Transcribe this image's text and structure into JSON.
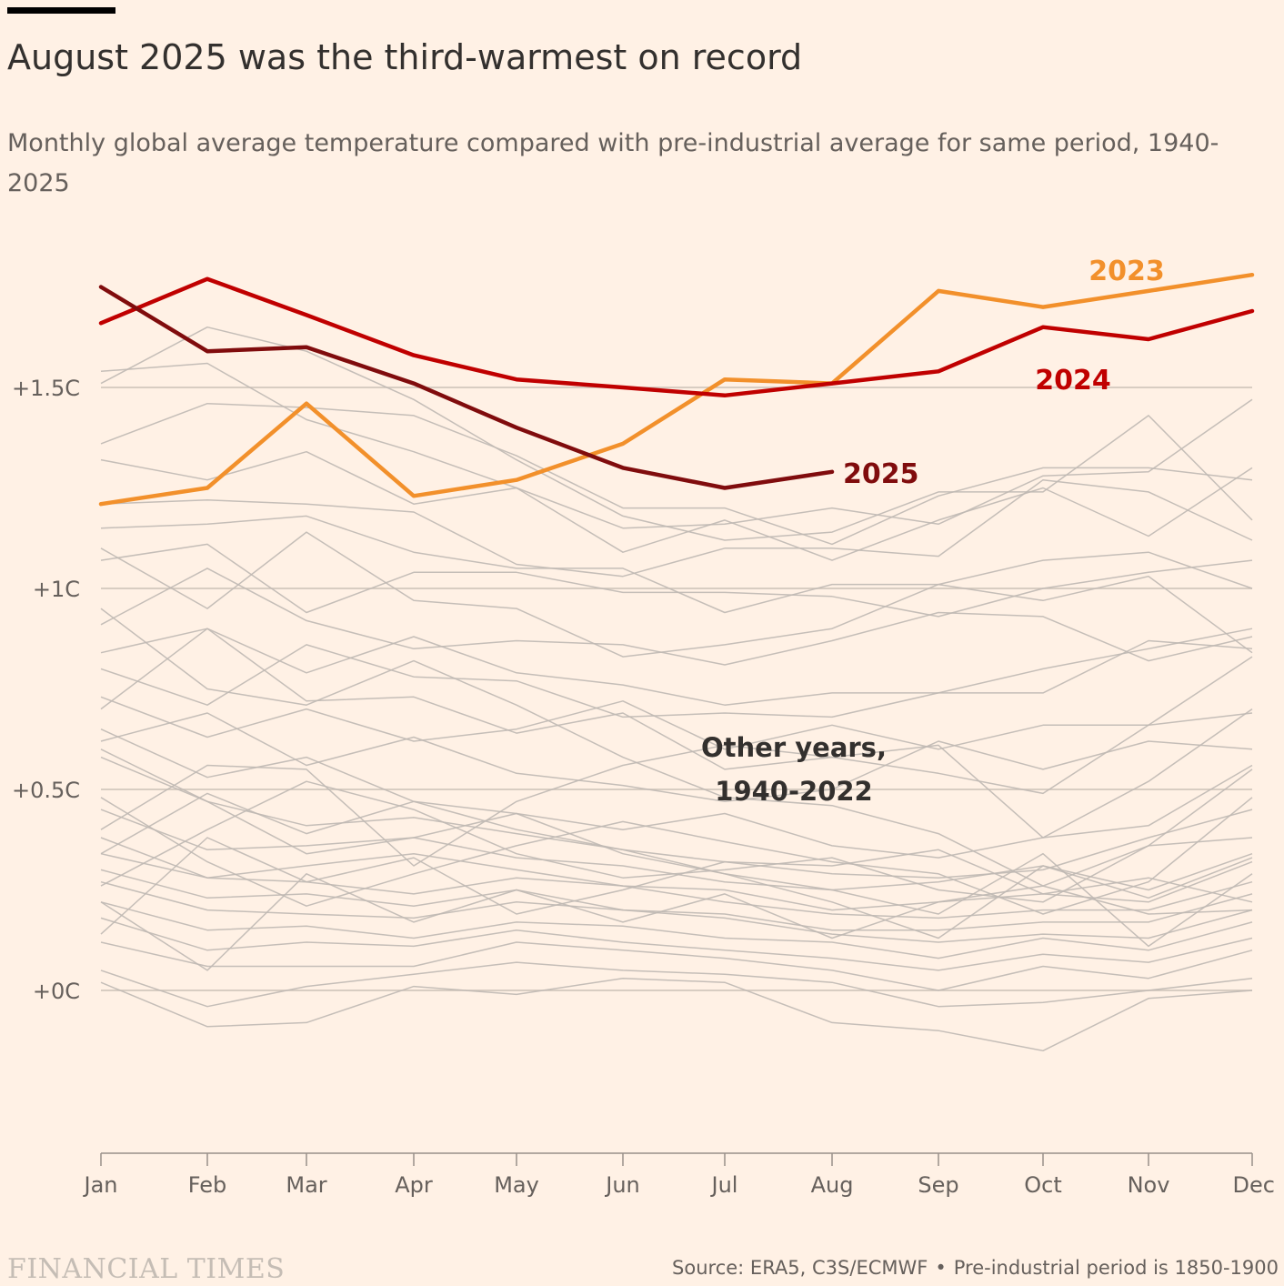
{
  "header": {
    "title": "August 2025 was the third-warmest on record",
    "subtitle": "Monthly global average temperature compared with pre-industrial average for same period, 1940-2025"
  },
  "footer": {
    "brand": "FINANCIAL TIMES",
    "source": "Source: ERA5, C3S/ECMWF",
    "separator": "•",
    "note": "Pre-industrial period is 1850-1900"
  },
  "colors": {
    "background": "#fff1e5",
    "grid": "#ccc1b7",
    "other_years": "#bfb8b3",
    "y2023": "#f2902b",
    "y2024": "#c00000",
    "y2025": "#800c0d",
    "text": "#33302e",
    "muted": "#66605c",
    "brand": "#c5bdb5"
  },
  "chart_data": {
    "type": "line",
    "title": "August 2025 was the third-warmest on record",
    "subtitle": "Monthly global average temperature compared with pre-industrial average for same period, 1940-2025",
    "xlabel": "",
    "ylabel": "",
    "categories": [
      "Jan",
      "Feb",
      "Mar",
      "Apr",
      "May",
      "Jun",
      "Jul",
      "Aug",
      "Sep",
      "Oct",
      "Nov",
      "Dec"
    ],
    "y_ticks": [
      0,
      0.5,
      1,
      1.5
    ],
    "y_tick_labels": [
      "+0C",
      "+0.5C",
      "+1C",
      "+1.5C"
    ],
    "ylim": [
      -0.4,
      1.9
    ],
    "grid": true,
    "highlighted_series": [
      {
        "name": "2023",
        "color": "#f2902b",
        "values": [
          1.21,
          1.25,
          1.46,
          1.23,
          1.27,
          1.36,
          1.52,
          1.51,
          1.74,
          1.7,
          1.74,
          1.78
        ]
      },
      {
        "name": "2024",
        "color": "#c00000",
        "values": [
          1.66,
          1.77,
          1.68,
          1.58,
          1.52,
          1.5,
          1.48,
          1.51,
          1.54,
          1.65,
          1.62,
          1.69
        ]
      },
      {
        "name": "2025",
        "color": "#800c0d",
        "values": [
          1.75,
          1.59,
          1.6,
          1.51,
          1.4,
          1.3,
          1.25,
          1.29
        ]
      }
    ],
    "other_years": {
      "label": "Other years, 1940-2022",
      "label_lines": [
        "Other years,",
        "1940-2022"
      ],
      "color": "#bfb8b3",
      "series": [
        [
          1.51,
          1.65,
          1.59,
          1.47,
          1.32,
          1.18,
          1.12,
          1.14,
          1.24,
          1.24,
          1.43,
          1.17
        ],
        [
          1.54,
          1.56,
          1.42,
          1.34,
          1.25,
          1.15,
          1.16,
          1.2,
          1.16,
          1.28,
          1.29,
          1.47
        ],
        [
          1.36,
          1.46,
          1.45,
          1.43,
          1.33,
          1.2,
          1.2,
          1.11,
          1.23,
          1.3,
          1.3,
          1.27
        ],
        [
          1.32,
          1.27,
          1.34,
          1.21,
          1.25,
          1.09,
          1.17,
          1.07,
          1.17,
          1.25,
          1.13,
          1.3
        ],
        [
          1.21,
          1.22,
          1.21,
          1.19,
          1.06,
          1.03,
          1.1,
          1.1,
          1.08,
          1.27,
          1.24,
          1.12
        ],
        [
          1.15,
          1.16,
          1.18,
          1.09,
          1.05,
          1.05,
          0.94,
          1.01,
          1.01,
          1.07,
          1.09,
          1.0
        ],
        [
          1.07,
          1.11,
          0.94,
          1.04,
          1.04,
          0.99,
          0.99,
          0.98,
          0.93,
          1.0,
          1.04,
          1.07
        ],
        [
          1.1,
          0.95,
          1.14,
          0.97,
          0.95,
          0.83,
          0.86,
          0.9,
          1.01,
          0.97,
          1.03,
          0.84
        ],
        [
          0.91,
          1.05,
          0.92,
          0.85,
          0.87,
          0.86,
          0.81,
          0.87,
          0.94,
          0.93,
          0.82,
          0.88
        ],
        [
          0.84,
          0.9,
          0.79,
          0.88,
          0.79,
          0.76,
          0.71,
          0.74,
          0.74,
          0.8,
          0.85,
          0.9
        ],
        [
          0.8,
          0.71,
          0.86,
          0.78,
          0.77,
          0.68,
          0.69,
          0.68,
          0.74,
          0.74,
          0.87,
          0.85
        ],
        [
          0.73,
          0.63,
          0.7,
          0.62,
          0.65,
          0.72,
          0.6,
          0.66,
          0.6,
          0.66,
          0.66,
          0.69
        ],
        [
          0.62,
          0.69,
          0.56,
          0.63,
          0.54,
          0.51,
          0.47,
          0.5,
          0.62,
          0.55,
          0.62,
          0.6
        ],
        [
          0.65,
          0.53,
          0.58,
          0.47,
          0.44,
          0.4,
          0.44,
          0.36,
          0.33,
          0.38,
          0.41,
          0.56
        ],
        [
          0.58,
          0.47,
          0.41,
          0.43,
          0.39,
          0.35,
          0.32,
          0.29,
          0.28,
          0.3,
          0.38,
          0.45
        ],
        [
          0.45,
          0.35,
          0.36,
          0.38,
          0.33,
          0.31,
          0.27,
          0.25,
          0.27,
          0.31,
          0.25,
          0.34
        ],
        [
          0.38,
          0.28,
          0.31,
          0.34,
          0.3,
          0.26,
          0.25,
          0.2,
          0.22,
          0.24,
          0.22,
          0.32
        ],
        [
          0.34,
          0.28,
          0.27,
          0.24,
          0.28,
          0.26,
          0.22,
          0.19,
          0.18,
          0.2,
          0.2,
          0.27
        ],
        [
          0.3,
          0.23,
          0.24,
          0.21,
          0.25,
          0.2,
          0.19,
          0.15,
          0.15,
          0.17,
          0.17,
          0.24
        ],
        [
          0.27,
          0.2,
          0.19,
          0.18,
          0.22,
          0.2,
          0.18,
          0.14,
          0.12,
          0.14,
          0.13,
          0.2
        ],
        [
          0.22,
          0.15,
          0.16,
          0.13,
          0.17,
          0.16,
          0.13,
          0.12,
          0.08,
          0.13,
          0.1,
          0.17
        ],
        [
          0.18,
          0.1,
          0.12,
          0.11,
          0.15,
          0.12,
          0.1,
          0.08,
          0.05,
          0.09,
          0.07,
          0.13
        ],
        [
          0.12,
          0.06,
          0.06,
          0.06,
          0.12,
          0.1,
          0.08,
          0.05,
          0.0,
          0.06,
          0.03,
          0.1
        ],
        [
          0.05,
          -0.04,
          0.01,
          0.04,
          0.07,
          0.05,
          0.04,
          0.02,
          -0.04,
          -0.03,
          0.0,
          0.03
        ],
        [
          0.02,
          -0.09,
          -0.08,
          0.01,
          -0.01,
          0.03,
          0.02,
          -0.08,
          -0.1,
          -0.15,
          -0.02,
          0.0
        ],
        [
          0.34,
          0.49,
          0.39,
          0.47,
          0.4,
          0.35,
          0.29,
          0.25,
          0.19,
          0.34,
          0.11,
          0.29
        ],
        [
          0.22,
          0.05,
          0.29,
          0.17,
          0.25,
          0.17,
          0.24,
          0.13,
          0.22,
          0.26,
          0.19,
          0.2
        ],
        [
          0.6,
          0.47,
          0.34,
          0.38,
          0.44,
          0.34,
          0.29,
          0.22,
          0.13,
          0.31,
          0.23,
          0.33
        ],
        [
          0.95,
          0.75,
          0.71,
          0.82,
          0.71,
          0.58,
          0.48,
          0.46,
          0.39,
          0.26,
          0.36,
          0.55
        ],
        [
          0.4,
          0.56,
          0.55,
          0.31,
          0.47,
          0.56,
          0.61,
          0.58,
          0.61,
          0.38,
          0.52,
          0.7
        ],
        [
          0.7,
          0.9,
          0.72,
          0.73,
          0.64,
          0.69,
          0.55,
          0.58,
          0.54,
          0.49,
          0.66,
          0.83
        ],
        [
          0.26,
          0.4,
          0.52,
          0.45,
          0.34,
          0.28,
          0.3,
          0.33,
          0.25,
          0.22,
          0.36,
          0.38
        ],
        [
          0.48,
          0.32,
          0.21,
          0.29,
          0.36,
          0.42,
          0.37,
          0.32,
          0.29,
          0.19,
          0.27,
          0.48
        ],
        [
          0.14,
          0.38,
          0.27,
          0.33,
          0.19,
          0.25,
          0.32,
          0.31,
          0.35,
          0.24,
          0.28,
          0.22
        ]
      ]
    }
  }
}
